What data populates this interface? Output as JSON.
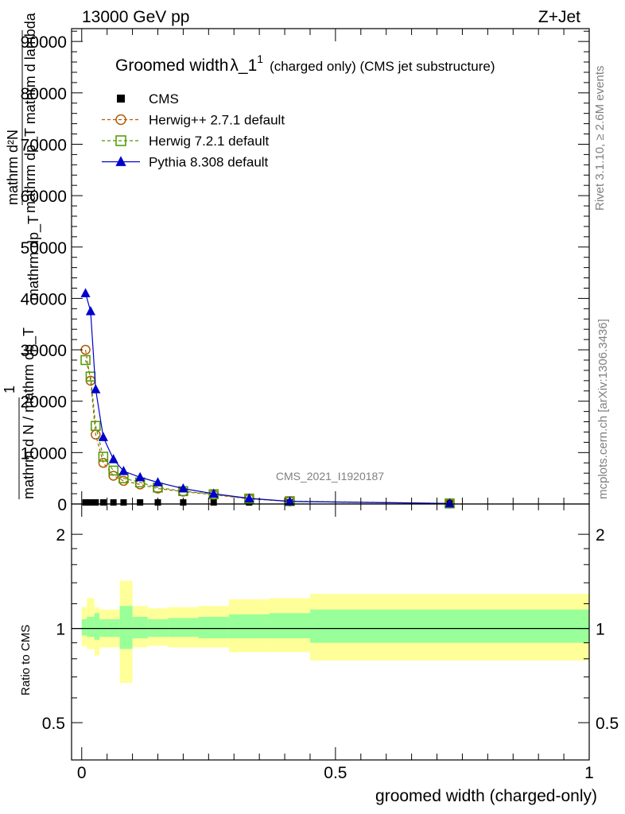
{
  "header": {
    "left_label": "13000 GeV pp",
    "right_label": "Z+Jet"
  },
  "side_texts": {
    "rivet": "Rivet 3.1.10, ≥ 2.6M events",
    "mcplots": "mcplots.cern.ch [arXiv:1306.3436]"
  },
  "watermark": "CMS_2021_I1920187",
  "chart_data": [
    {
      "type": "line",
      "title": "Groomed width",
      "title_symbol": "λ_1",
      "title_sup": "1",
      "title_suffix": "(charged only) (CMS jet substructure)",
      "ylabel_lines": [
        "mathrm d²N",
        "mathrm dp_T mathrm d lambda",
        "mathrm dp_T",
        "1",
        "mathrm d N / mathrm dp_T"
      ],
      "ylim": [
        0,
        92500
      ],
      "yticks": [
        0,
        10000,
        20000,
        30000,
        40000,
        50000,
        60000,
        70000,
        80000,
        90000
      ],
      "ytick_labels": [
        "0",
        "10000",
        "20000",
        "30000",
        "40000",
        "50000",
        "60000",
        "70000",
        "80000",
        "90000"
      ],
      "xlim": [
        -0.02,
        1.0
      ],
      "legend_position": "top-left",
      "legend": [
        {
          "name": "CMS",
          "color": "#000000",
          "marker": "square-filled"
        },
        {
          "name": "Herwig++ 2.7.1 default",
          "color": "#b35900",
          "marker": "circle-open"
        },
        {
          "name": "Herwig 7.2.1 default",
          "color": "#4c9900",
          "marker": "square-open"
        },
        {
          "name": "Pythia 8.308 default",
          "color": "#0000cc",
          "marker": "triangle-filled"
        }
      ],
      "x": [
        0.0075,
        0.0175,
        0.0275,
        0.0425,
        0.0625,
        0.0825,
        0.115,
        0.15,
        0.2,
        0.26,
        0.33,
        0.41,
        0.725
      ],
      "series": [
        {
          "name": "CMS",
          "values": [
            300,
            300,
            300,
            300,
            300,
            300,
            300,
            300,
            300,
            300,
            300,
            300,
            300
          ]
        },
        {
          "name": "Herwig++ 2.7.1 default",
          "values": [
            30000,
            24000,
            13500,
            8000,
            5500,
            4500,
            3800,
            3000,
            2400,
            1800,
            1000,
            500,
            100
          ]
        },
        {
          "name": "Herwig 7.2.1 default",
          "values": [
            28000,
            24800,
            15200,
            9200,
            6500,
            5000,
            4200,
            3200,
            2500,
            1900,
            1050,
            550,
            110
          ]
        },
        {
          "name": "Pythia 8.308 default",
          "values": [
            41000,
            37500,
            22300,
            13000,
            8700,
            6400,
            5200,
            4200,
            3000,
            2000,
            1100,
            500,
            100
          ]
        }
      ]
    },
    {
      "type": "area",
      "xlabel": "groomed width (charged-only)",
      "ylabel": "Ratio to CMS",
      "scale": "log",
      "ylim": [
        0.38,
        2.5
      ],
      "yticks": [
        0.5,
        1,
        2
      ],
      "ytick_labels": [
        "0.5",
        "1",
        "2"
      ],
      "xlim": [
        -0.02,
        1.0
      ],
      "xticks": [
        0,
        0.5,
        1
      ],
      "xtick_labels": [
        "0",
        "0.5",
        "1"
      ],
      "bin_edges": [
        0.0,
        0.01,
        0.025,
        0.035,
        0.05,
        0.075,
        0.1,
        0.13,
        0.17,
        0.23,
        0.29,
        0.37,
        0.45,
        1.0
      ],
      "band_inner_colour": "#99ff99",
      "band_outer_colour": "#ffff99",
      "band_inner_upper": [
        1.07,
        1.09,
        1.12,
        1.07,
        1.07,
        1.18,
        1.09,
        1.07,
        1.08,
        1.09,
        1.11,
        1.12,
        1.15
      ],
      "band_inner_lower": [
        0.95,
        0.94,
        0.92,
        0.94,
        0.94,
        0.86,
        0.93,
        0.94,
        0.94,
        0.93,
        0.93,
        0.93,
        0.9
      ],
      "band_outer_upper": [
        1.17,
        1.25,
        1.17,
        1.15,
        1.15,
        1.42,
        1.18,
        1.16,
        1.17,
        1.18,
        1.24,
        1.25,
        1.29
      ],
      "band_outer_lower": [
        0.88,
        0.86,
        0.82,
        0.87,
        0.87,
        0.67,
        0.87,
        0.88,
        0.87,
        0.87,
        0.84,
        0.84,
        0.79
      ],
      "reference_line": 1
    }
  ]
}
